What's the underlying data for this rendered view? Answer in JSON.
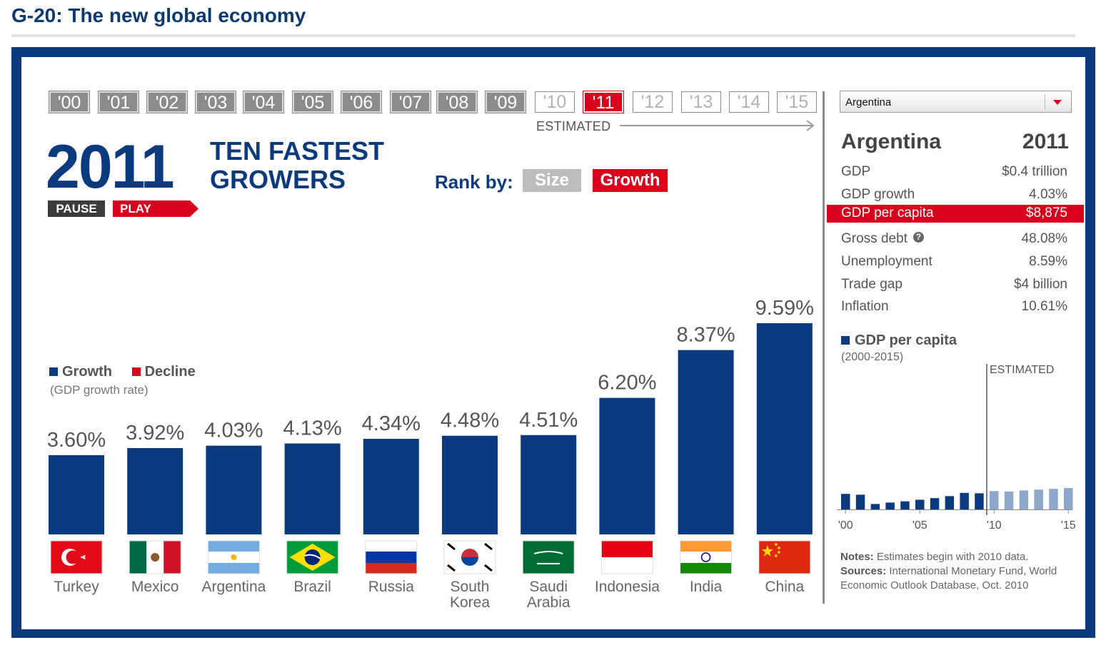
{
  "page_title": "G-20: The new global economy",
  "timeline": {
    "years": [
      {
        "label": "'00",
        "state": "past"
      },
      {
        "label": "'01",
        "state": "past"
      },
      {
        "label": "'02",
        "state": "past"
      },
      {
        "label": "'03",
        "state": "past"
      },
      {
        "label": "'04",
        "state": "past"
      },
      {
        "label": "'05",
        "state": "past"
      },
      {
        "label": "'06",
        "state": "past"
      },
      {
        "label": "'07",
        "state": "past"
      },
      {
        "label": "'08",
        "state": "past"
      },
      {
        "label": "'09",
        "state": "past"
      },
      {
        "label": "'10",
        "state": "future"
      },
      {
        "label": "'11",
        "state": "active"
      },
      {
        "label": "'12",
        "state": "future"
      },
      {
        "label": "'13",
        "state": "future"
      },
      {
        "label": "'14",
        "state": "future"
      },
      {
        "label": "'15",
        "state": "future"
      }
    ],
    "estimated_label": "ESTIMATED"
  },
  "header": {
    "year": "2011",
    "headline_line1": "TEN FASTEST",
    "headline_line2": "GROWERS",
    "pause_label": "PAUSE",
    "play_label": "PLAY",
    "rank_by_label": "Rank by:",
    "rank_size_label": "Size",
    "rank_growth_label": "Growth"
  },
  "legend": {
    "growth_label": "Growth",
    "decline_label": "Decline",
    "subtitle": "(GDP growth rate)"
  },
  "colors": {
    "accent_blue": "#0b3a7e",
    "accent_red": "#d9001b",
    "mini_future": "#8ea8cc"
  },
  "chart_data": [
    {
      "type": "bar",
      "title": "TEN FASTEST GROWERS",
      "ylabel": "GDP growth rate",
      "categories": [
        "Turkey",
        "Mexico",
        "Argentina",
        "Brazil",
        "Russia",
        "South Korea",
        "Saudi Arabia",
        "Indonesia",
        "India",
        "China"
      ],
      "category_lines": [
        [
          "Turkey"
        ],
        [
          "Mexico"
        ],
        [
          "Argentina"
        ],
        [
          "Brazil"
        ],
        [
          "Russia"
        ],
        [
          "South",
          "Korea"
        ],
        [
          "Saudi",
          "Arabia"
        ],
        [
          "Indonesia"
        ],
        [
          "India"
        ],
        [
          "China"
        ]
      ],
      "flags": [
        "turkey-flag",
        "mexico-flag",
        "argentina-flag",
        "brazil-flag",
        "russia-flag",
        "south-korea-flag",
        "saudi-arabia-flag",
        "indonesia-flag",
        "india-flag",
        "china-flag"
      ],
      "values": [
        3.6,
        3.92,
        4.03,
        4.13,
        4.34,
        4.48,
        4.51,
        6.2,
        8.37,
        9.59
      ],
      "value_labels": [
        "3.60%",
        "3.92%",
        "4.03%",
        "4.13%",
        "4.34%",
        "4.48%",
        "4.51%",
        "6.20%",
        "8.37%",
        "9.59%"
      ],
      "ylim": [
        0,
        10
      ],
      "grid": false
    },
    {
      "type": "bar",
      "title": "GDP per capita",
      "subtitle": "(2000-2015)",
      "x": [
        "2000",
        "2001",
        "2002",
        "2003",
        "2004",
        "2005",
        "2006",
        "2007",
        "2008",
        "2009",
        "2010",
        "2011",
        "2012",
        "2013",
        "2014",
        "2015"
      ],
      "values": [
        7.7,
        7.3,
        2.7,
        3.4,
        4.0,
        4.8,
        5.6,
        6.6,
        8.2,
        8.0,
        9.1,
        8.9,
        9.4,
        9.8,
        10.2,
        10.6
      ],
      "estimated_from": "2010",
      "estimated_label": "ESTIMATED",
      "x_tick_labels": [
        "'00",
        "'05",
        "'10",
        "'15"
      ],
      "ylim": [
        0,
        40
      ]
    }
  ],
  "side_panel": {
    "dropdown_value": "Argentina",
    "country": "Argentina",
    "year": "2011",
    "stats": [
      {
        "label": "GDP",
        "value": "$0.4 trillion"
      },
      {
        "label": "GDP growth",
        "value": "4.03%"
      },
      {
        "label": "GDP per capita",
        "value": "$8,875"
      },
      {
        "label": "Gross debt",
        "value": "48.08%"
      },
      {
        "label": "Unemployment",
        "value": "8.59%"
      },
      {
        "label": "Trade gap",
        "value": "$4 billion"
      },
      {
        "label": "Inflation",
        "value": "10.61%"
      }
    ],
    "notes_label": "Notes:",
    "notes_text": "Estimates begin with 2010 data.",
    "sources_label": "Sources:",
    "sources_text": "International Monetary Fund, World Economic Outlook Database, Oct. 2010"
  }
}
